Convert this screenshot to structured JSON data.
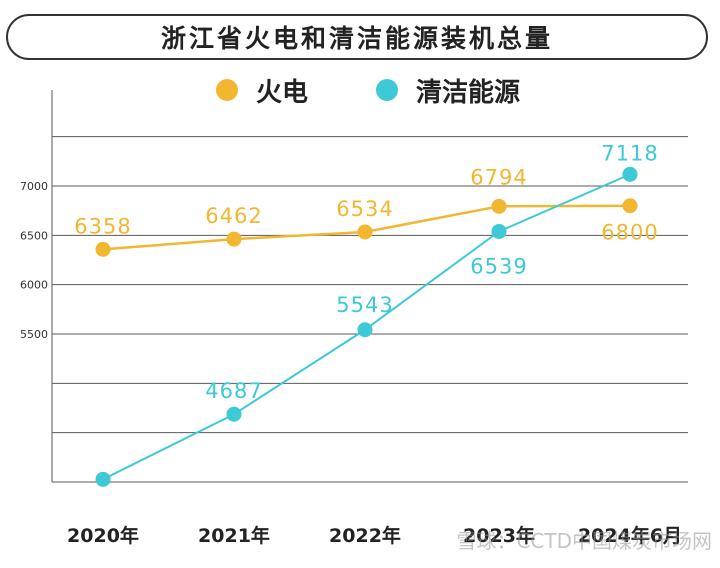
{
  "title": "浙江省火电和清洁能源装机总量",
  "watermark": "雪球：CCTD中国煤炭市场网",
  "colors": {
    "thermal": "#F2B731",
    "clean": "#3DC9D6",
    "grid": "#5a5a5a"
  },
  "chart_data": {
    "type": "line",
    "title": "浙江省火电和清洁能源装机总量",
    "categories": [
      "2020年",
      "2021年",
      "2022年",
      "2023年",
      "2024年6月"
    ],
    "y_ticks": [
      "5500",
      "6000",
      "6500",
      "7000"
    ],
    "ylim": [
      4000,
      7500
    ],
    "grid": true,
    "legend_position": "top",
    "series": [
      {
        "name": "火电",
        "values": [
          6358,
          6462,
          6534,
          6794,
          6800
        ],
        "labels": [
          "6358",
          "6462",
          "6534",
          "6794",
          "6800"
        ]
      },
      {
        "name": "清洁能源",
        "values": [
          4027,
          4687,
          5543,
          6539,
          7118
        ],
        "labels": [
          "",
          "4687",
          "5543",
          "6539",
          "7118"
        ]
      }
    ]
  }
}
